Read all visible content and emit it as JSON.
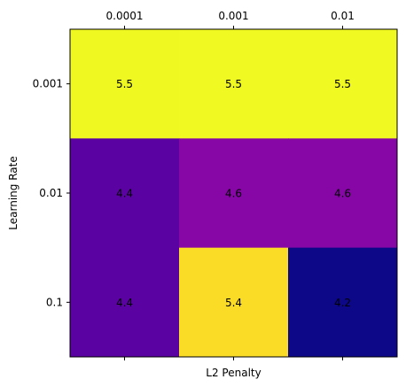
{
  "chart_data": {
    "type": "heatmap",
    "x_tick_labels": [
      "0.0001",
      "0.001",
      "0.01"
    ],
    "y_tick_labels": [
      "0.001",
      "0.01",
      "0.1"
    ],
    "xlabel": "L2 Penalty",
    "ylabel": "Learning Rate",
    "x_ticks_position": "top",
    "colormap": "plasma",
    "values": [
      [
        5.5,
        5.5,
        5.5
      ],
      [
        4.4,
        4.6,
        4.6
      ],
      [
        4.4,
        5.4,
        4.2
      ]
    ],
    "value_labels": [
      [
        "5.5",
        "5.5",
        "5.5"
      ],
      [
        "4.4",
        "4.6",
        "4.6"
      ],
      [
        "4.4",
        "5.4",
        "4.2"
      ]
    ],
    "cell_colors": [
      [
        "#eff821",
        "#f0f921",
        "#f0f921"
      ],
      [
        "#5b02a3",
        "#8606a6",
        "#8606a6"
      ],
      [
        "#5b02a3",
        "#fadc27",
        "#0d0887"
      ]
    ],
    "grid": false,
    "legend": "none"
  }
}
